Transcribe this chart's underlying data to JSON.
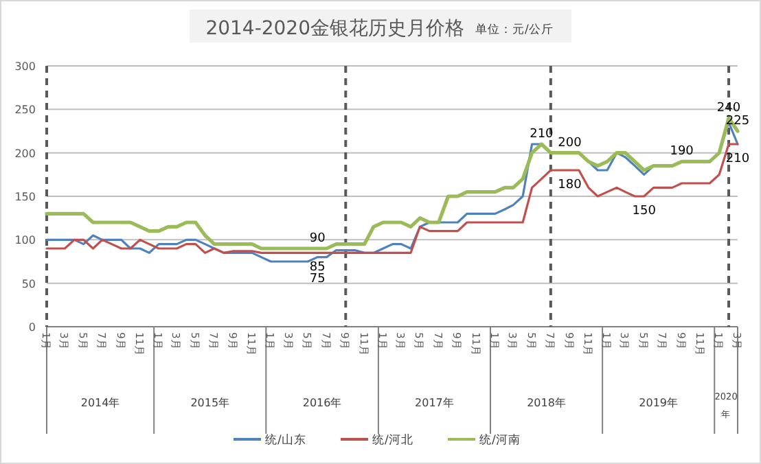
{
  "chart_data": {
    "type": "line",
    "title": "2014-2020金银花历史月价格",
    "subtitle": "单位：元/公斤",
    "x": [
      "2014-01",
      "2014-02",
      "2014-03",
      "2014-04",
      "2014-05",
      "2014-06",
      "2014-07",
      "2014-08",
      "2014-09",
      "2014-10",
      "2014-11",
      "2014-12",
      "2015-01",
      "2015-02",
      "2015-03",
      "2015-04",
      "2015-05",
      "2015-06",
      "2015-07",
      "2015-08",
      "2015-09",
      "2015-10",
      "2015-11",
      "2015-12",
      "2016-01",
      "2016-02",
      "2016-03",
      "2016-04",
      "2016-05",
      "2016-06",
      "2016-07",
      "2016-08",
      "2016-09",
      "2016-10",
      "2016-11",
      "2016-12",
      "2017-01",
      "2017-02",
      "2017-03",
      "2017-04",
      "2017-05",
      "2017-06",
      "2017-07",
      "2017-08",
      "2017-09",
      "2017-10",
      "2017-11",
      "2017-12",
      "2018-01",
      "2018-02",
      "2018-03",
      "2018-04",
      "2018-05",
      "2018-06",
      "2018-07",
      "2018-08",
      "2018-09",
      "2018-10",
      "2018-11",
      "2018-12",
      "2019-01",
      "2019-02",
      "2019-03",
      "2019-04",
      "2019-05",
      "2019-06",
      "2019-07",
      "2019-08",
      "2019-09",
      "2019-10",
      "2019-11",
      "2019-12",
      "2020-01",
      "2020-02",
      "2020-03"
    ],
    "series": [
      {
        "name": "统/山东",
        "color": "#4f81bd",
        "values": [
          100,
          100,
          100,
          100,
          95,
          105,
          100,
          100,
          100,
          90,
          90,
          85,
          95,
          95,
          95,
          100,
          100,
          95,
          90,
          85,
          85,
          85,
          85,
          80,
          75,
          75,
          75,
          75,
          75,
          80,
          80,
          88,
          88,
          88,
          85,
          85,
          90,
          95,
          95,
          90,
          115,
          120,
          120,
          120,
          120,
          130,
          130,
          130,
          130,
          135,
          140,
          150,
          210,
          210,
          200,
          200,
          200,
          200,
          190,
          180,
          180,
          200,
          195,
          185,
          175,
          185,
          185,
          185,
          190,
          190,
          190,
          190,
          200,
          235,
          210
        ]
      },
      {
        "name": "统/河北",
        "color": "#c0504d",
        "values": [
          90,
          90,
          90,
          100,
          100,
          90,
          100,
          95,
          90,
          90,
          100,
          95,
          90,
          90,
          90,
          95,
          95,
          85,
          90,
          85,
          87,
          87,
          87,
          85,
          85,
          85,
          85,
          85,
          85,
          85,
          85,
          85,
          85,
          85,
          85,
          85,
          85,
          85,
          85,
          85,
          115,
          110,
          110,
          110,
          110,
          120,
          120,
          120,
          120,
          120,
          120,
          120,
          160,
          170,
          180,
          180,
          180,
          180,
          160,
          150,
          155,
          160,
          155,
          150,
          150,
          160,
          160,
          160,
          165,
          165,
          165,
          165,
          175,
          210,
          210
        ]
      },
      {
        "name": "统/河南",
        "color": "#9bbb59",
        "values": [
          130,
          130,
          130,
          130,
          130,
          120,
          120,
          120,
          120,
          120,
          115,
          110,
          110,
          115,
          115,
          120,
          120,
          105,
          95,
          95,
          95,
          95,
          95,
          90,
          90,
          90,
          90,
          90,
          90,
          90,
          90,
          95,
          95,
          95,
          95,
          115,
          120,
          120,
          120,
          115,
          125,
          120,
          120,
          150,
          150,
          155,
          155,
          155,
          155,
          160,
          160,
          170,
          200,
          210,
          200,
          200,
          200,
          200,
          190,
          185,
          190,
          200,
          200,
          190,
          180,
          185,
          185,
          185,
          190,
          190,
          190,
          190,
          200,
          240,
          225
        ]
      }
    ],
    "xlim": [
      "2014-01",
      "2020-03"
    ],
    "xticks": [
      {
        "value": "2014-01",
        "label": "1月"
      },
      {
        "value": "2014-03",
        "label": "3月"
      },
      {
        "value": "2014-05",
        "label": "5月"
      },
      {
        "value": "2014-07",
        "label": "7月"
      },
      {
        "value": "2014-09",
        "label": "9月"
      },
      {
        "value": "2014-11",
        "label": "11月"
      },
      {
        "value": "2015-01",
        "label": "1月"
      },
      {
        "value": "2015-03",
        "label": "3月"
      },
      {
        "value": "2015-05",
        "label": "5月"
      },
      {
        "value": "2015-07",
        "label": "7月"
      },
      {
        "value": "2015-09",
        "label": "9月"
      },
      {
        "value": "2015-11",
        "label": "11月"
      },
      {
        "value": "2016-01",
        "label": "1月"
      },
      {
        "value": "2016-03",
        "label": "3月"
      },
      {
        "value": "2016-05",
        "label": "5月"
      },
      {
        "value": "2016-07",
        "label": "7月"
      },
      {
        "value": "2016-09",
        "label": "9月"
      },
      {
        "value": "2016-11",
        "label": "11月"
      },
      {
        "value": "2017-01",
        "label": "1月"
      },
      {
        "value": "2017-03",
        "label": "3月"
      },
      {
        "value": "2017-05",
        "label": "5月"
      },
      {
        "value": "2017-07",
        "label": "7月"
      },
      {
        "value": "2017-09",
        "label": "9月"
      },
      {
        "value": "2017-11",
        "label": "11月"
      },
      {
        "value": "2018-01",
        "label": "1月"
      },
      {
        "value": "2018-03",
        "label": "3月"
      },
      {
        "value": "2018-05",
        "label": "5月"
      },
      {
        "value": "2018-07",
        "label": "7月"
      },
      {
        "value": "2018-09",
        "label": "9月"
      },
      {
        "value": "2018-11",
        "label": "11月"
      },
      {
        "value": "2019-01",
        "label": "1月"
      },
      {
        "value": "2019-03",
        "label": "3月"
      },
      {
        "value": "2019-05",
        "label": "5月"
      },
      {
        "value": "2019-07",
        "label": "7月"
      },
      {
        "value": "2019-09",
        "label": "9月"
      },
      {
        "value": "2019-11",
        "label": "11月"
      },
      {
        "value": "2020-01",
        "label": "1月"
      },
      {
        "value": "2020-03",
        "label": "3月"
      }
    ],
    "ylim": [
      0,
      300
    ],
    "yticks": [
      0,
      50,
      100,
      150,
      200,
      250,
      300
    ],
    "grid": "y",
    "legend": "bottom",
    "marker": "none",
    "line_style": "solid",
    "ref_lines": [
      {
        "axis": "x",
        "value": "2016-09",
        "color": "#595959",
        "line_style": "dashed"
      },
      {
        "axis": "x",
        "value": "2018-07",
        "color": "#595959",
        "line_style": "dashed"
      },
      {
        "axis": "x",
        "value": "2020-02",
        "color": "#595959",
        "line_style": "dashed"
      }
    ],
    "annotations": [
      "2014年",
      "2015年",
      "2016年",
      "2017年",
      "2018年",
      "2019年",
      "2020年",
      {
        "text": "90",
        "x": "2016-06",
        "y": 90
      },
      {
        "text": "85",
        "x": "2016-06",
        "y": 85
      },
      {
        "text": "75",
        "x": "2016-06",
        "y": 75
      },
      {
        "text": "210",
        "x": "2018-06",
        "y": 210
      },
      {
        "text": "200",
        "x": "2018-09",
        "y": 200
      },
      {
        "text": "180",
        "x": "2018-09",
        "y": 180
      },
      {
        "text": "190",
        "x": "2019-09",
        "y": 190
      },
      {
        "text": "150",
        "x": "2019-05",
        "y": 150
      },
      {
        "text": "240",
        "x": "2020-02",
        "y": 240
      },
      {
        "text": "225",
        "x": "2020-03",
        "y": 225
      },
      {
        "text": "210",
        "x": "2020-03",
        "y": 210
      }
    ]
  }
}
